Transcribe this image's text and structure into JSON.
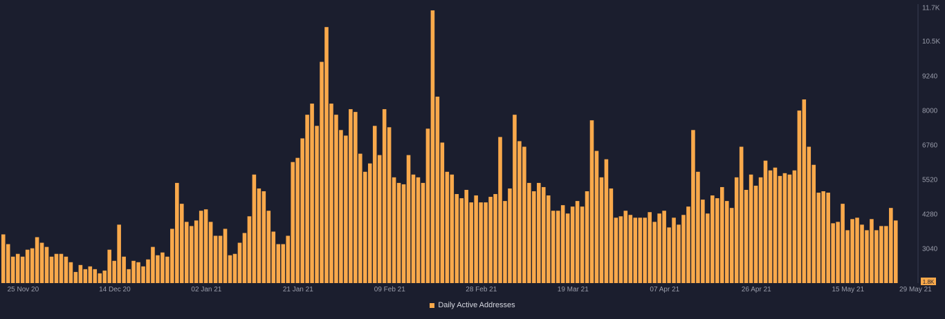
{
  "chart_data": {
    "type": "bar",
    "title": "",
    "xlabel": "",
    "ylabel": "",
    "ylim": [
      1800,
      11700
    ],
    "y_ticks": [
      "11.7K",
      "10.5K",
      "9240",
      "8000",
      "6760",
      "5520",
      "4280",
      "3040"
    ],
    "y_min_badge": "1.8K",
    "x_ticks": [
      {
        "label": "25 Nov 20",
        "index": 4
      },
      {
        "label": "14 Dec 20",
        "index": 23
      },
      {
        "label": "02 Jan 21",
        "index": 42
      },
      {
        "label": "21 Jan 21",
        "index": 61
      },
      {
        "label": "09 Feb 21",
        "index": 80
      },
      {
        "label": "28 Feb 21",
        "index": 99
      },
      {
        "label": "19 Mar 21",
        "index": 118
      },
      {
        "label": "07 Apr 21",
        "index": 137
      },
      {
        "label": "26 Apr 21",
        "index": 156
      },
      {
        "label": "15 May 21",
        "index": 175
      },
      {
        "label": "29 May 21",
        "index": 189
      }
    ],
    "grid": false,
    "legend_position": "bottom-center",
    "series": [
      {
        "name": "Daily Active Addresses",
        "color": "#f9a94b",
        "values": [
          3550,
          3200,
          2750,
          2850,
          2750,
          3000,
          3050,
          3450,
          3250,
          3100,
          2750,
          2850,
          2850,
          2750,
          2550,
          2200,
          2450,
          2300,
          2400,
          2300,
          2150,
          2250,
          3000,
          2600,
          3900,
          2750,
          2300,
          2600,
          2550,
          2400,
          2650,
          3100,
          2800,
          2900,
          2750,
          3750,
          5400,
          4650,
          4000,
          3850,
          4050,
          4400,
          4450,
          4000,
          3500,
          3500,
          3750,
          2800,
          2850,
          3250,
          3600,
          4200,
          5700,
          5200,
          5100,
          4400,
          3650,
          3200,
          3200,
          3500,
          6150,
          6300,
          7000,
          7850,
          8250,
          7450,
          9750,
          11000,
          8250,
          7850,
          7300,
          7100,
          8050,
          7950,
          6450,
          5800,
          6100,
          7450,
          6400,
          8050,
          7400,
          5600,
          5400,
          5350,
          6400,
          5700,
          5600,
          5400,
          7350,
          11600,
          8500,
          6850,
          5800,
          5700,
          5000,
          4850,
          5150,
          4700,
          4950,
          4700,
          4700,
          4900,
          5000,
          7050,
          4750,
          5200,
          7850,
          6900,
          6700,
          5400,
          5100,
          5400,
          5250,
          4950,
          4400,
          4400,
          4600,
          4300,
          4550,
          4750,
          4550,
          5100,
          7650,
          6550,
          5600,
          6250,
          5200,
          4150,
          4200,
          4400,
          4250,
          4150,
          4150,
          4150,
          4350,
          4000,
          4300,
          4400,
          3800,
          4150,
          3900,
          4250,
          4550,
          7300,
          5800,
          4800,
          4300,
          4950,
          4850,
          5250,
          4750,
          4500,
          5600,
          6700,
          5150,
          5700,
          5300,
          5600,
          6200,
          5850,
          5950,
          5650,
          5750,
          5700,
          5850,
          8000,
          8400,
          6700,
          6050,
          5050,
          5100,
          5050,
          3950,
          4000,
          4650,
          3700,
          4100,
          4150,
          3900,
          3700,
          4100,
          3700,
          3850,
          3850,
          4500,
          4050
        ]
      }
    ]
  }
}
